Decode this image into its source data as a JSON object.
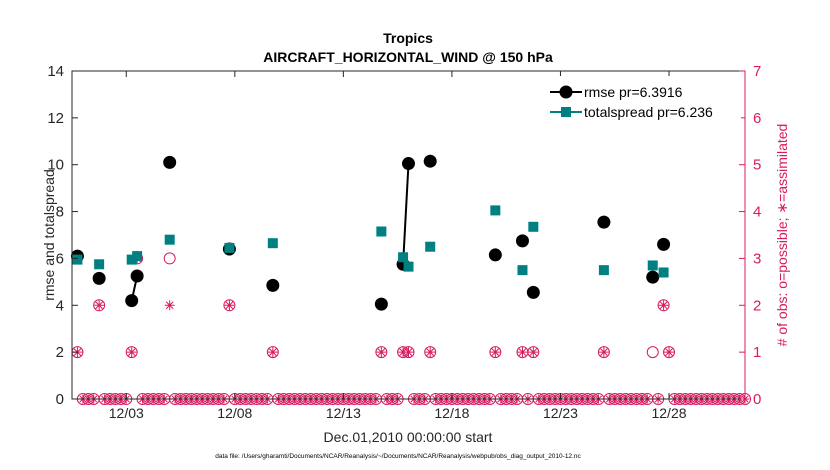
{
  "chart_data": {
    "type": "line",
    "title": "Tropics",
    "subtitle": "AIRCRAFT_HORIZONTAL_WIND @ 150 hPa",
    "xlabel": "Dec.01,2010 00:00:00 start",
    "ylabel_left": "rmse and totalspread",
    "ylabel_right": "# of obs: o=possible; ∗=assimilated",
    "footnote": "data file: /Users/gharamti/Documents/NCAR/Reanalysis/~/Documents/NCAR/Reanalysis/webpub/obs_diag_output_2010-12.nc",
    "xlim": [
      0.5,
      31.5
    ],
    "ylim_left": [
      0,
      14
    ],
    "ylim_right": [
      0,
      7
    ],
    "x_ticks": [
      3,
      8,
      13,
      18,
      23,
      28
    ],
    "x_tick_labels": [
      "12/03",
      "12/08",
      "12/13",
      "12/18",
      "12/23",
      "12/28"
    ],
    "y_left_ticks": [
      0,
      2,
      4,
      6,
      8,
      10,
      12,
      14
    ],
    "y_right_ticks": [
      0,
      1,
      2,
      3,
      4,
      5,
      6,
      7
    ],
    "colors": {
      "rmse": "#000000",
      "totalspread": "#008080",
      "obs": "#d81b60"
    },
    "legend": {
      "position": "top-right",
      "entries": [
        "rmse pr=6.3916",
        "totalspread pr=6.236"
      ]
    },
    "series": [
      {
        "name": "rmse",
        "axis": "left",
        "points": [
          [
            0.75,
            6.1
          ],
          [
            1.75,
            5.15
          ],
          [
            3.25,
            4.2
          ],
          [
            3.5,
            5.25
          ],
          [
            5,
            10.1
          ],
          [
            7.75,
            6.4
          ],
          [
            9.75,
            4.85
          ],
          [
            14.75,
            4.05
          ],
          [
            15.75,
            5.75
          ],
          [
            16,
            10.05
          ],
          [
            17,
            10.15
          ],
          [
            20,
            6.15
          ],
          [
            21.25,
            6.75
          ],
          [
            21.75,
            4.55
          ],
          [
            25,
            7.55
          ],
          [
            27.25,
            5.2
          ],
          [
            27.75,
            6.6
          ]
        ],
        "segments_connected": [
          [
            3.25,
            3.5
          ],
          [
            15.75,
            16
          ]
        ]
      },
      {
        "name": "totalspread",
        "axis": "left",
        "points": [
          [
            0.75,
            5.95
          ],
          [
            1.75,
            5.75
          ],
          [
            3.25,
            5.95
          ],
          [
            3.5,
            6.1
          ],
          [
            5,
            6.8
          ],
          [
            7.75,
            6.45
          ],
          [
            9.75,
            6.65
          ],
          [
            14.75,
            7.15
          ],
          [
            15.75,
            6.05
          ],
          [
            16,
            5.65
          ],
          [
            17,
            6.5
          ],
          [
            20,
            8.05
          ],
          [
            21.25,
            5.5
          ],
          [
            21.75,
            7.35
          ],
          [
            25,
            5.5
          ],
          [
            27.25,
            5.7
          ],
          [
            27.75,
            5.4
          ]
        ],
        "segments_connected": [
          [
            3.25,
            3.5
          ],
          [
            15.75,
            16
          ]
        ]
      },
      {
        "name": "obs_possible",
        "axis": "right",
        "marker": "o",
        "points": [
          [
            0.75,
            1
          ],
          [
            1.75,
            2
          ],
          [
            3.25,
            1
          ],
          [
            3.5,
            3
          ],
          [
            5,
            3
          ],
          [
            7.75,
            2
          ],
          [
            9.75,
            1
          ],
          [
            14.75,
            1
          ],
          [
            15.75,
            1
          ],
          [
            16,
            1
          ],
          [
            17,
            1
          ],
          [
            20,
            1
          ],
          [
            21.25,
            1
          ],
          [
            21.75,
            1
          ],
          [
            25,
            1
          ],
          [
            27.25,
            1
          ],
          [
            27.75,
            2
          ],
          [
            28,
            1
          ]
        ]
      },
      {
        "name": "obs_assimilated",
        "axis": "right",
        "marker": "*",
        "points": [
          [
            0.75,
            1
          ],
          [
            1.75,
            2
          ],
          [
            3.25,
            1
          ],
          [
            3.5,
            3
          ],
          [
            5,
            2
          ],
          [
            7.75,
            2
          ],
          [
            9.75,
            1
          ],
          [
            14.75,
            1
          ],
          [
            15.75,
            1
          ],
          [
            16,
            1
          ],
          [
            17,
            1
          ],
          [
            20,
            1
          ],
          [
            21.25,
            1
          ],
          [
            21.75,
            1
          ],
          [
            25,
            1
          ],
          [
            27.75,
            2
          ],
          [
            28,
            1
          ]
        ]
      }
    ]
  }
}
